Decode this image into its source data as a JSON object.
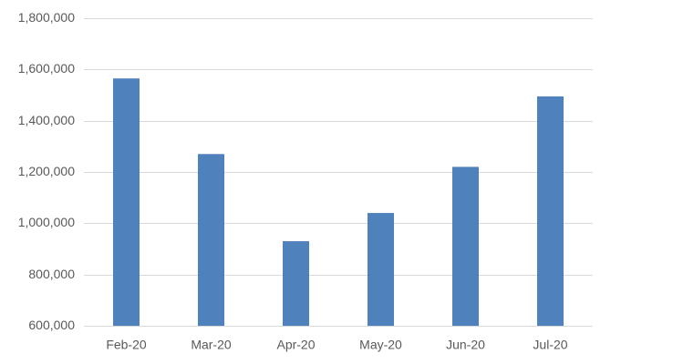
{
  "chart_data": {
    "type": "bar",
    "categories": [
      "Feb-20",
      "Mar-20",
      "Apr-20",
      "May-20",
      "Jun-20",
      "Jul-20"
    ],
    "values": [
      1565000,
      1270000,
      930000,
      1040000,
      1220000,
      1495000
    ],
    "color": "#4f81bd",
    "ylim": [
      600000,
      1800000
    ],
    "yticks": [
      {
        "value": 600000,
        "label": "600,000"
      },
      {
        "value": 800000,
        "label": "800,000"
      },
      {
        "value": 1000000,
        "label": "1,000,000"
      },
      {
        "value": 1200000,
        "label": "1,200,000"
      },
      {
        "value": 1400000,
        "label": "1,400,000"
      },
      {
        "value": 1600000,
        "label": "1,600,000"
      },
      {
        "value": 1800000,
        "label": "1,800,000"
      }
    ],
    "grid": true
  }
}
